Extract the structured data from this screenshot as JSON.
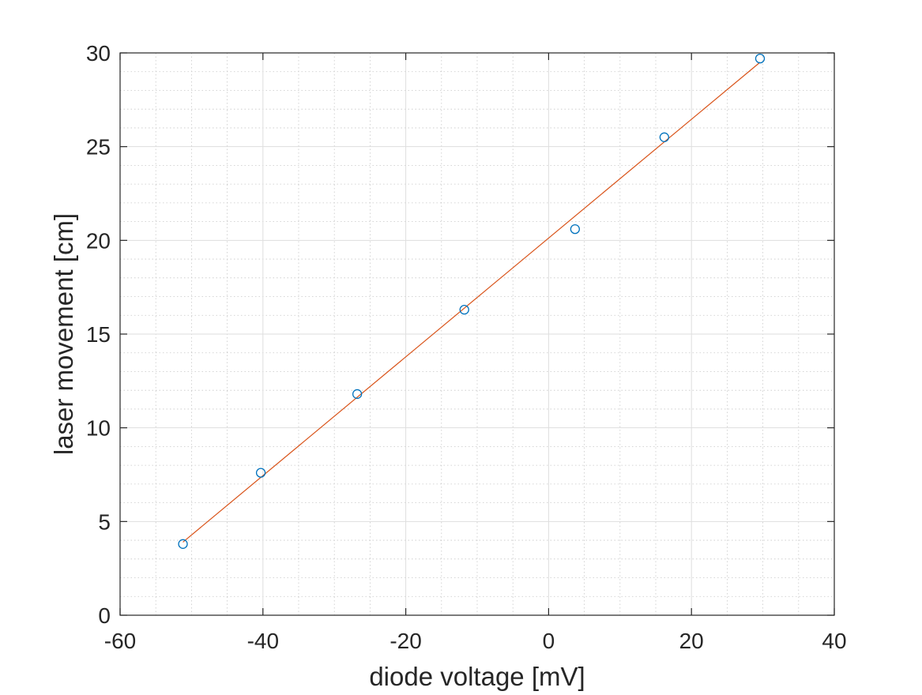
{
  "chart_data": {
    "type": "scatter",
    "title": "",
    "xlabel": "diode voltage [mV]",
    "ylabel": "laser movement [cm]",
    "xlim": [
      -60,
      40
    ],
    "ylim": [
      0,
      30
    ],
    "x_ticks": [
      -60,
      -40,
      -20,
      0,
      20,
      40
    ],
    "y_ticks": [
      0,
      5,
      10,
      15,
      20,
      25,
      30
    ],
    "x_tick_labels": [
      "-60",
      "-40",
      "-20",
      "0",
      "20",
      "40"
    ],
    "y_tick_labels": [
      "0",
      "5",
      "10",
      "15",
      "20",
      "25",
      "30"
    ],
    "grid": true,
    "minor_grid": true,
    "series": [
      {
        "kind": "markers",
        "marker": "open-circle",
        "color": "#0072BD",
        "x": [
          -51.2,
          -40.3,
          -26.8,
          -11.8,
          3.7,
          16.2,
          29.6
        ],
        "y": [
          3.8,
          7.6,
          11.8,
          16.3,
          20.6,
          25.5,
          29.7
        ]
      },
      {
        "kind": "fit-line",
        "color": "#D95319",
        "x": [
          -51.2,
          29.6
        ],
        "y": [
          3.9,
          29.5
        ]
      }
    ]
  }
}
